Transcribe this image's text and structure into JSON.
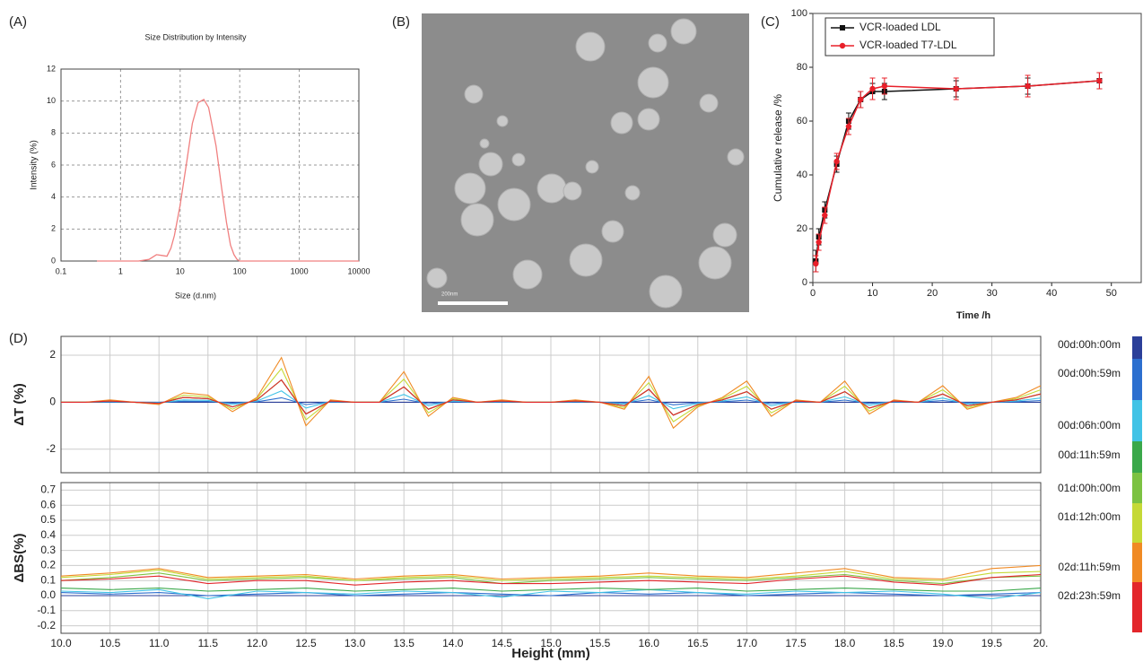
{
  "chart_data": [
    {
      "type": "line",
      "panel_label": "(A)",
      "title": "Size Distribution by Intensity",
      "x_label": "Size (d.nm)",
      "y_label": "Intensity (%)",
      "log_x": true,
      "grid": true,
      "color": "#f08080",
      "x": [
        0.4,
        1,
        2,
        3,
        4,
        5,
        6,
        7,
        8,
        10,
        13,
        16,
        20,
        25,
        30,
        40,
        50,
        60,
        70,
        80,
        90,
        100,
        1000,
        10000
      ],
      "values": [
        0,
        0,
        0,
        0.1,
        0.4,
        0.35,
        0.3,
        0.8,
        1.6,
        3.5,
        6.3,
        8.6,
        9.9,
        10.1,
        9.6,
        7.2,
        4.5,
        2.4,
        1.0,
        0.4,
        0.1,
        0,
        0,
        0
      ],
      "xlim": [
        0.1,
        10000
      ],
      "xticks": [
        0.1,
        1,
        10,
        100,
        1000,
        10000
      ],
      "ylim": [
        0,
        12
      ],
      "yticks": [
        0,
        2,
        4,
        6,
        8,
        10,
        12
      ]
    },
    {
      "type": "errorline",
      "panel_label": "(C)",
      "x_label": "Time /h",
      "y_label": "Cumulative  release /%",
      "grid": false,
      "legend": "upper left",
      "x": [
        0.5,
        1,
        2,
        4,
        6,
        8,
        10,
        12,
        24,
        36,
        48
      ],
      "series": [
        {
          "name": "VCR-loaded LDL",
          "color": "#111111",
          "marker": "square",
          "values": [
            8,
            17,
            27,
            44,
            60,
            68,
            71,
            71,
            72,
            73,
            75
          ],
          "errors": [
            4,
            3,
            3,
            3,
            3,
            3,
            3,
            3,
            3,
            3,
            3
          ]
        },
        {
          "name": "VCR-loaded T7-LDL",
          "color": "#e8202a",
          "marker": "circle",
          "values": [
            7,
            15,
            25,
            45,
            58,
            68,
            72,
            73,
            72,
            73,
            75
          ],
          "errors": [
            3,
            3,
            3,
            3,
            3,
            3,
            4,
            3,
            4,
            4,
            3
          ]
        }
      ],
      "xlim": [
        0,
        55
      ],
      "xticks": [
        0,
        10,
        20,
        30,
        40,
        50
      ],
      "ylim": [
        0,
        100
      ],
      "yticks": [
        0,
        20,
        40,
        60,
        80,
        100
      ]
    },
    {
      "type": "line",
      "panel_label": "(D)",
      "y_label": "ΔT (%)",
      "grid": true,
      "x": [
        10,
        10.25,
        10.5,
        10.75,
        11,
        11.25,
        11.5,
        11.75,
        12,
        12.25,
        12.5,
        12.75,
        13,
        13.25,
        13.5,
        13.75,
        14,
        14.25,
        14.5,
        14.75,
        15,
        15.25,
        15.5,
        15.75,
        16,
        16.25,
        16.5,
        16.75,
        17,
        17.25,
        17.5,
        17.75,
        18,
        18.25,
        18.5,
        18.75,
        19,
        19.25,
        19.5,
        19.75,
        20
      ],
      "series": [
        {
          "color": "#2b3f99",
          "values": [
            0,
            0,
            0,
            0,
            0,
            0,
            0,
            0,
            0,
            0,
            0,
            0,
            0,
            0,
            0,
            0,
            0,
            0,
            0,
            0,
            0,
            0,
            0,
            0,
            0,
            0,
            0,
            0,
            0,
            0,
            0,
            0,
            0,
            0,
            0,
            0,
            0,
            0,
            0,
            0,
            0
          ]
        },
        {
          "color": "#2c6fcf",
          "values": [
            0,
            0,
            0.01,
            0,
            -0.01,
            0.04,
            0.03,
            -0.04,
            0.02,
            0.19,
            -0.1,
            0.01,
            0,
            0,
            0.13,
            -0.06,
            0.02,
            0,
            0.01,
            0,
            0,
            0.01,
            0,
            -0.03,
            0.11,
            -0.11,
            -0.02,
            0.02,
            0.09,
            -0.06,
            0.01,
            0,
            0.09,
            -0.05,
            0.01,
            0,
            0.07,
            -0.03,
            0,
            0.02,
            0.07
          ]
        },
        {
          "color": "#41c3e6",
          "values": [
            0,
            0,
            0.03,
            0,
            -0.03,
            0.1,
            0.08,
            -0.1,
            0.05,
            0.48,
            -0.25,
            0.03,
            0,
            0,
            0.33,
            -0.15,
            0.05,
            0,
            0.03,
            0,
            0,
            0.03,
            0,
            -0.08,
            0.28,
            -0.28,
            -0.05,
            0.05,
            0.23,
            -0.15,
            0.03,
            0,
            0.23,
            -0.13,
            0.03,
            0,
            0.18,
            -0.08,
            0,
            0.05,
            0.18
          ]
        },
        {
          "color": "#3aa84a",
          "values": [
            0,
            0,
            0.05,
            0,
            -0.05,
            0.2,
            0.15,
            -0.2,
            0.1,
            0.95,
            -0.5,
            0.05,
            0,
            0,
            0.65,
            -0.3,
            0.1,
            0,
            0.05,
            0,
            0,
            0.05,
            0,
            -0.15,
            0.55,
            -0.55,
            -0.1,
            0.1,
            0.45,
            -0.3,
            0.05,
            0,
            0.45,
            -0.25,
            0.05,
            0,
            0.35,
            -0.15,
            0,
            0.1,
            0.35
          ]
        },
        {
          "color": "#7cc242",
          "values": [
            0,
            0,
            0.05,
            0,
            -0.05,
            0.2,
            0.15,
            -0.2,
            0.1,
            0.95,
            -0.5,
            0.05,
            0,
            0,
            0.65,
            -0.3,
            0.1,
            0,
            0.05,
            0,
            0,
            0.05,
            0,
            -0.15,
            0.55,
            -0.55,
            -0.1,
            0.1,
            0.45,
            -0.3,
            0.05,
            0,
            0.45,
            -0.25,
            0.05,
            0,
            0.35,
            -0.15,
            0,
            0.1,
            0.35
          ]
        },
        {
          "color": "#c5d936",
          "values": [
            0,
            0,
            0.08,
            0,
            -0.08,
            0.3,
            0.23,
            -0.3,
            0.15,
            1.43,
            -0.75,
            0.08,
            0,
            0,
            0.98,
            -0.45,
            0.15,
            0,
            0.08,
            0,
            0,
            0.08,
            0,
            -0.23,
            0.83,
            -0.83,
            -0.15,
            0.15,
            0.68,
            -0.45,
            0.08,
            0,
            0.68,
            -0.38,
            0.08,
            0,
            0.53,
            -0.23,
            0,
            0.15,
            0.53
          ]
        },
        {
          "color": "#f08a24",
          "values": [
            0,
            0,
            0.1,
            0,
            -0.1,
            0.4,
            0.3,
            -0.4,
            0.2,
            1.9,
            -1.0,
            0.1,
            0,
            0,
            1.3,
            -0.6,
            0.2,
            0,
            0.1,
            0,
            0,
            0.1,
            0,
            -0.3,
            1.1,
            -1.1,
            -0.2,
            0.2,
            0.9,
            -0.6,
            0.1,
            0,
            0.9,
            -0.5,
            0.1,
            0,
            0.7,
            -0.3,
            0,
            0.2,
            0.7
          ]
        },
        {
          "color": "#e3262b",
          "values": [
            0,
            0,
            0.05,
            0,
            -0.05,
            0.2,
            0.15,
            -0.2,
            0.1,
            0.95,
            -0.5,
            0.05,
            0,
            0,
            0.65,
            -0.3,
            0.1,
            0,
            0.05,
            0,
            0,
            0.05,
            0,
            -0.15,
            0.55,
            -0.55,
            -0.1,
            0.1,
            0.45,
            -0.3,
            0.05,
            0,
            0.45,
            -0.25,
            0.05,
            0,
            0.35,
            -0.15,
            0,
            0.1,
            0.35
          ]
        }
      ],
      "xlim": [
        10,
        20
      ],
      "ylim": [
        -3,
        2.8
      ],
      "yticks": [
        -2,
        0,
        2
      ]
    },
    {
      "type": "line",
      "y_label": "ΔBS(%)",
      "x_label": "Height (mm)",
      "grid": true,
      "legend": "right",
      "x": [
        10,
        10.5,
        11,
        11.5,
        12,
        12.5,
        13,
        13.5,
        14,
        14.5,
        15,
        15.5,
        16,
        16.5,
        17,
        17.5,
        18,
        18.5,
        19,
        19.5,
        20
      ],
      "series": [
        {
          "name": "00d:00h:00m",
          "color": "#2b3f99",
          "values": [
            0,
            0,
            0,
            0,
            0,
            0,
            0,
            0,
            0,
            0,
            0,
            0,
            0,
            0,
            0,
            0,
            0,
            0,
            0,
            0,
            0
          ]
        },
        {
          "name": "00d:00h:59m",
          "color": "#2c6fcf",
          "values": [
            0.02,
            0.01,
            0.02,
            0,
            0.01,
            0.02,
            0,
            0.01,
            0.02,
            0.01,
            0,
            0.02,
            0.01,
            0.02,
            0,
            0.01,
            0.02,
            0.01,
            0,
            0.01,
            0.02
          ]
        },
        {
          "name": "00d:06h:00m",
          "color": "#41c3e6",
          "values": [
            0.03,
            0.02,
            0.04,
            -0.02,
            0.03,
            0.02,
            0.01,
            0.03,
            0.02,
            -0.01,
            0.03,
            0.02,
            0.04,
            0.02,
            0.01,
            0.03,
            0.02,
            0.03,
            0.01,
            -0.02,
            0.02
          ]
        },
        {
          "name": "00d:11h:59m",
          "color": "#3aa84a",
          "values": [
            0.05,
            0.04,
            0.05,
            0.03,
            0.04,
            0.05,
            0.03,
            0.04,
            0.05,
            0.03,
            0.04,
            0.05,
            0.04,
            0.05,
            0.03,
            0.04,
            0.05,
            0.04,
            0.03,
            0.03,
            0.05
          ]
        },
        {
          "name": "01d:00h:00m",
          "color": "#7cc242",
          "values": [
            0.1,
            0.12,
            0.15,
            0.1,
            0.11,
            0.12,
            0.1,
            0.11,
            0.12,
            0.08,
            0.1,
            0.11,
            0.12,
            0.11,
            0.1,
            0.12,
            0.14,
            0.1,
            0.08,
            0.12,
            0.13
          ]
        },
        {
          "name": "01d:12h:00m",
          "color": "#c5d936",
          "values": [
            0.12,
            0.14,
            0.17,
            0.11,
            0.12,
            0.13,
            0.1,
            0.12,
            0.13,
            0.1,
            0.11,
            0.12,
            0.13,
            0.12,
            0.11,
            0.13,
            0.16,
            0.11,
            0.1,
            0.15,
            0.16
          ]
        },
        {
          "name": "02d:11h:59m",
          "color": "#f08a24",
          "values": [
            0.13,
            0.15,
            0.18,
            0.12,
            0.13,
            0.14,
            0.11,
            0.13,
            0.14,
            0.11,
            0.12,
            0.13,
            0.15,
            0.13,
            0.12,
            0.15,
            0.18,
            0.12,
            0.11,
            0.18,
            0.2
          ]
        },
        {
          "name": "02d:23h:59m",
          "color": "#e3262b",
          "values": [
            0.1,
            0.11,
            0.13,
            0.08,
            0.1,
            0.1,
            0.07,
            0.09,
            0.1,
            0.08,
            0.08,
            0.09,
            0.1,
            0.09,
            0.08,
            0.11,
            0.13,
            0.09,
            0.07,
            0.12,
            0.14
          ]
        }
      ],
      "xlim": [
        10,
        20
      ],
      "xticks": [
        {
          "value": 10,
          "label": "10.0"
        },
        10.5,
        {
          "value": 11,
          "label": "11.0"
        },
        11.5,
        {
          "value": 12,
          "label": "12.0"
        },
        12.5,
        {
          "value": 13,
          "label": "13.0"
        },
        13.5,
        {
          "value": 14,
          "label": "14.0"
        },
        14.5,
        {
          "value": 15,
          "label": "15.0"
        },
        15.5,
        {
          "value": 16,
          "label": "16.0"
        },
        16.5,
        {
          "value": 17,
          "label": "17.0"
        },
        17.5,
        {
          "value": 18,
          "label": "18.0"
        },
        18.5,
        {
          "value": 19,
          "label": "19.0"
        },
        19.5,
        {
          "value": 20,
          "label": "20."
        }
      ],
      "ylim": [
        -0.25,
        0.75
      ],
      "yticks": [
        -0.2,
        -0.1,
        {
          "value": 0,
          "label": "0.0"
        },
        0.1,
        0.2,
        0.3,
        0.4,
        0.5,
        0.6,
        0.7
      ]
    }
  ],
  "image": {
    "panel_label": "(B)",
    "scale_label": "200nm"
  }
}
